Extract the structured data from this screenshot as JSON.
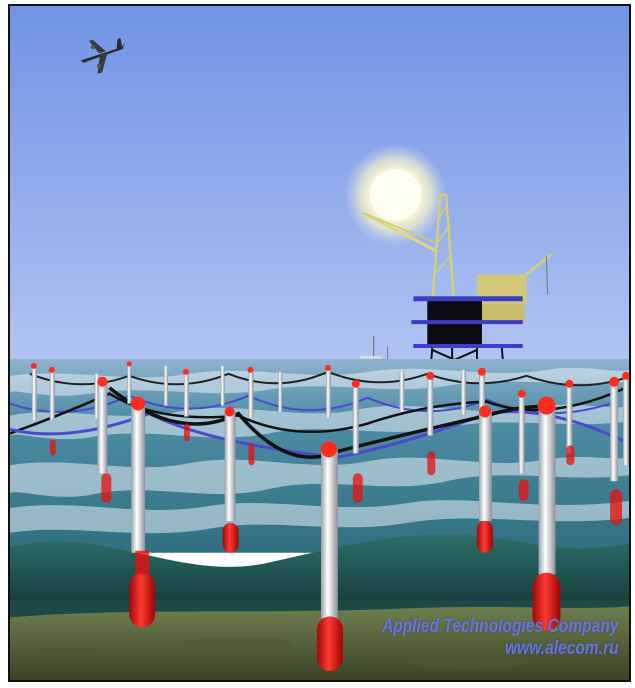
{
  "image": {
    "description_colors": {
      "sky_top": "#6f93e4",
      "sky_bottom": "#a9bff0",
      "sea_surface": "#3f7f97",
      "deep_water": "#1f5a56",
      "seabed": "#5b6a3e",
      "buoy_red": "#e8100e",
      "cable_blue": "#4a4ad0"
    },
    "icons": [
      "airplane-icon",
      "sun-icon",
      "oil-platform-icon",
      "ship-icon"
    ]
  },
  "watermark": {
    "company": "Applied Technologies Company",
    "url": "www.alecom.ru"
  }
}
